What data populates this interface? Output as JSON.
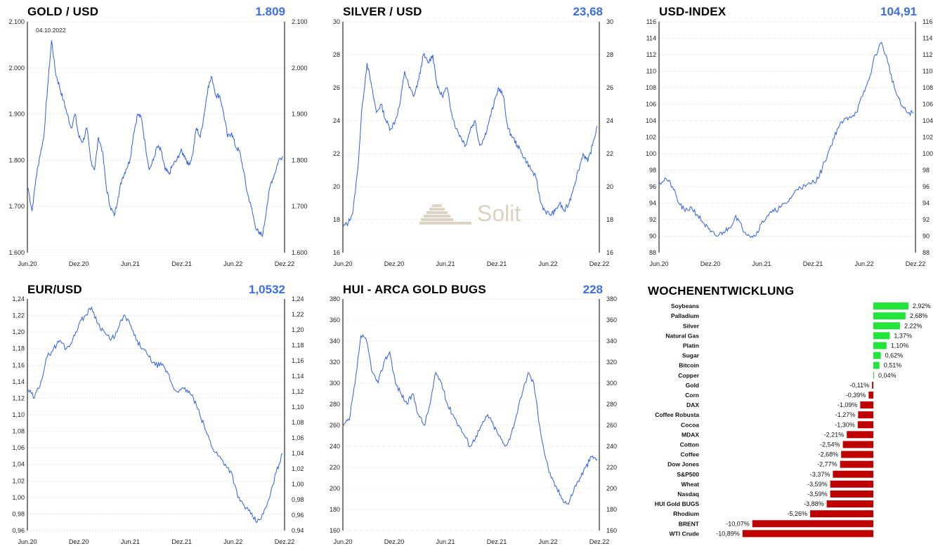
{
  "colors": {
    "line": "#2f5fe0",
    "value": "#3b6fe0",
    "grid": "#e6e6e6",
    "pos": "#22e53a",
    "neg": "#c00000"
  },
  "watermark": {
    "text": "Solit"
  },
  "charts": {
    "gold": {
      "title": "GOLD / USD",
      "value": "1.809",
      "chart_data": {
        "type": "line",
        "y_ticks": [
          "1.600",
          "1.700",
          "1.800",
          "1.900",
          "2.000",
          "2.100"
        ],
        "x_ticks": [
          "Jun.20",
          "Dez.20",
          "Jun.21",
          "Dez.21",
          "Jun.22",
          "Dez.22"
        ],
        "annotation": "04.10.2022",
        "ylim": [
          1600,
          2100
        ],
        "series": [
          {
            "values": [
              1740,
              1690,
              1760,
              1810,
              1850,
              1960,
              2060,
              1990,
              1960,
              1930,
              1900,
              1870,
              1900,
              1850,
              1840,
              1870,
              1800,
              1780,
              1850,
              1820,
              1740,
              1700,
              1680,
              1720,
              1760,
              1780,
              1800,
              1860,
              1900,
              1890,
              1830,
              1780,
              1800,
              1830,
              1820,
              1780,
              1770,
              1790,
              1800,
              1820,
              1810,
              1790,
              1810,
              1870,
              1850,
              1900,
              1960,
              1980,
              1940,
              1940,
              1900,
              1850,
              1860,
              1830,
              1820,
              1780,
              1730,
              1700,
              1660,
              1640,
              1640,
              1700,
              1750,
              1770,
              1800,
              1809
            ]
          }
        ]
      }
    },
    "silver": {
      "title": "SILVER / USD",
      "value": "23,68",
      "chart_data": {
        "type": "line",
        "y_ticks": [
          "16",
          "18",
          "20",
          "22",
          "24",
          "26",
          "28",
          "30"
        ],
        "x_ticks": [
          "Jun.20",
          "Dez.20",
          "Jun.21",
          "Dez.21",
          "Jun.22",
          "Dez.22"
        ],
        "ylim": [
          16,
          30
        ],
        "series": [
          {
            "values": [
              17.6,
              17.8,
              18.5,
              21,
              25,
              27.5,
              26,
              24.5,
              25,
              24,
              23.5,
              24,
              25,
              27,
              26,
              25.5,
              26.5,
              28,
              27.5,
              28,
              26,
              25.5,
              26,
              24.5,
              23.5,
              23,
              22.5,
              23.5,
              24,
              22.5,
              23,
              24,
              25,
              26,
              25.5,
              23.5,
              23,
              22.5,
              22,
              21.5,
              21,
              20.5,
              19,
              18.5,
              18.3,
              18.5,
              19,
              18.5,
              19,
              20,
              21,
              22,
              21.5,
              22.5,
              23.68
            ]
          }
        ]
      }
    },
    "usd": {
      "title": "USD-INDEX",
      "value": "104,91",
      "chart_data": {
        "type": "line",
        "y_ticks": [
          "88",
          "90",
          "92",
          "94",
          "96",
          "98",
          "100",
          "102",
          "104",
          "106",
          "108",
          "110",
          "112",
          "114",
          "116"
        ],
        "x_ticks": [
          "Jun.20",
          "Dez.20",
          "Jun.21",
          "Dez.21",
          "Jun.22",
          "Dez.22"
        ],
        "ylim": [
          88,
          116
        ],
        "series": [
          {
            "values": [
              96.5,
              97,
              96,
              94,
              93,
              93.5,
              92.5,
              91.5,
              90.5,
              90,
              90.5,
              91,
              92.5,
              91,
              90.2,
              90,
              91.5,
              92.5,
              93,
              93.5,
              94,
              95,
              96,
              96,
              96.5,
              97,
              99,
              101,
              103,
              104,
              104.5,
              105,
              107,
              109,
              112,
              113.5,
              111,
              108,
              106,
              105,
              104.91
            ]
          }
        ]
      }
    },
    "eur": {
      "title": "EUR/USD",
      "value": "1,0532",
      "chart_data": {
        "type": "line",
        "y_ticks": [
          "0,96",
          "0,98",
          "1,00",
          "1,02",
          "1,04",
          "1,06",
          "1,08",
          "1,10",
          "1,12",
          "1,14",
          "1,16",
          "1,18",
          "1,20",
          "1,22",
          "1,24"
        ],
        "y_ticks_right": [
          "0,94",
          "0,96",
          "0,98",
          "1,00",
          "1,02",
          "1,04",
          "1,06",
          "1,08",
          "1,10",
          "1,12",
          "1,14",
          "1,16",
          "1,18",
          "1,20",
          "1,22",
          "1,24"
        ],
        "x_ticks": [
          "Jun.20",
          "Dez.20",
          "Jun.21",
          "Dez.21",
          "Jun.22",
          "Dez.22"
        ],
        "ylim": [
          0.96,
          1.24
        ],
        "series": [
          {
            "values": [
              1.13,
              1.12,
              1.14,
              1.17,
              1.18,
              1.19,
              1.18,
              1.19,
              1.21,
              1.22,
              1.23,
              1.21,
              1.2,
              1.19,
              1.2,
              1.22,
              1.21,
              1.19,
              1.18,
              1.17,
              1.16,
              1.16,
              1.15,
              1.13,
              1.13,
              1.13,
              1.12,
              1.1,
              1.08,
              1.06,
              1.05,
              1.04,
              1.03,
              1.0,
              0.99,
              0.98,
              0.97,
              0.98,
              1.0,
              1.03,
              1.0532
            ]
          }
        ]
      }
    },
    "hui": {
      "title": "HUI - ARCA GOLD BUGS",
      "value": "228",
      "chart_data": {
        "type": "line",
        "y_ticks": [
          "160",
          "180",
          "200",
          "220",
          "240",
          "260",
          "280",
          "300",
          "320",
          "340",
          "360",
          "380"
        ],
        "x_ticks": [
          "Jun.20",
          "Dez.20",
          "Jun.21",
          "Dez.21",
          "Jun.22",
          "Dez.22"
        ],
        "ylim": [
          160,
          380
        ],
        "series": [
          {
            "values": [
              260,
              265,
              300,
              345,
              340,
              310,
              300,
              320,
              330,
              300,
              290,
              280,
              290,
              270,
              260,
              280,
              310,
              300,
              280,
              270,
              260,
              250,
              240,
              250,
              260,
              270,
              260,
              250,
              240,
              250,
              270,
              290,
              310,
              300,
              260,
              230,
              210,
              200,
              190,
              185,
              200,
              210,
              220,
              230,
              228
            ]
          }
        ]
      }
    },
    "weekly": {
      "title": "WOCHENENTWICKLUNG",
      "chart_data": {
        "type": "bar",
        "categories": [
          "Soybeans",
          "Palladium",
          "Silver",
          "Natural Gas",
          "Platin",
          "Sugar",
          "Bitcoin",
          "Copper",
          "Gold",
          "Corn",
          "DAX",
          "Coffee Robusta",
          "Cocoa",
          "MDAX",
          "Cotton",
          "Coffee",
          "Dow Jones",
          "S&P500",
          "Wheat",
          "Nasdaq",
          "HUI Gold BUGS",
          "Rhodium",
          "BRENT",
          "WTI Crude"
        ],
        "values": [
          2.92,
          2.68,
          2.22,
          1.37,
          1.1,
          0.62,
          0.51,
          0.04,
          -0.11,
          -0.39,
          -1.09,
          -1.27,
          -1.3,
          -2.21,
          -2.54,
          -2.68,
          -2.77,
          -3.37,
          -3.59,
          -3.59,
          -3.88,
          -5.26,
          -10.07,
          -10.89
        ],
        "labels": [
          "2,92%",
          "2,68%",
          "2,22%",
          "1,37%",
          "1,10%",
          "0,62%",
          "0,51%",
          "0,04%",
          "-0,11%",
          "-0,39%",
          "-1,09%",
          "-1,27%",
          "-1,30%",
          "-2,21%",
          "-2,54%",
          "-2,68%",
          "-2,77%",
          "-3,37%",
          "-3,59%",
          "-3,59%",
          "-3,88%",
          "-5,26%",
          "-10,07%",
          "-10,89%"
        ]
      }
    }
  }
}
